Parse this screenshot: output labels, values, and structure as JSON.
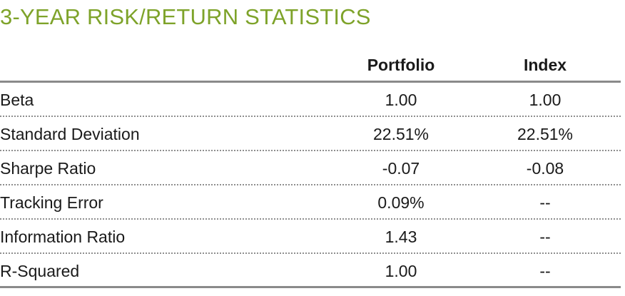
{
  "title": "3-YEAR RISK/RETURN STATISTICS",
  "columns": {
    "portfolio": "Portfolio",
    "index": "Index"
  },
  "rows": [
    {
      "label": "Beta",
      "portfolio": "1.00",
      "index": "1.00"
    },
    {
      "label": "Standard Deviation",
      "portfolio": "22.51%",
      "index": "22.51%"
    },
    {
      "label": "Sharpe Ratio",
      "portfolio": "-0.07",
      "index": "-0.08"
    },
    {
      "label": "Tracking Error",
      "portfolio": "0.09%",
      "index": "--"
    },
    {
      "label": "Information Ratio",
      "portfolio": "1.43",
      "index": "--"
    },
    {
      "label": "R-Squared",
      "portfolio": "1.00",
      "index": "--"
    }
  ],
  "colors": {
    "title": "#7ea32a",
    "rule": "#8a8a8a"
  }
}
